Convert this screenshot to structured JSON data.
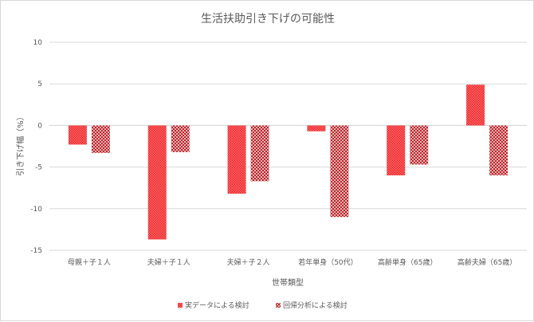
{
  "chart_data": {
    "type": "bar",
    "title": "生活扶助引き下げの可能性",
    "xlabel": "世帯類型",
    "ylabel": "引き下げ幅（%）",
    "ylim": [
      -15,
      10
    ],
    "yticks": [
      10,
      5,
      0,
      -5,
      -10,
      -15
    ],
    "ytick_labels": [
      "10",
      "5",
      "0",
      "-5",
      "-10",
      "-15"
    ],
    "grid": true,
    "legend_position": "bottom",
    "categories": [
      "母親＋子１人",
      "夫婦＋子１人",
      "夫婦＋子２人",
      "若年単身（50代）",
      "高齢単身（65歳）",
      "高齢夫婦（65歳）"
    ],
    "series": [
      {
        "name": "実データによる検討",
        "values": [
          -2.3,
          -13.7,
          -8.2,
          -0.7,
          -6.0,
          4.9
        ],
        "color": "#e8262b",
        "pattern": "dense-dots"
      },
      {
        "name": "回帰分析による検討",
        "values": [
          -3.3,
          -3.2,
          -6.7,
          -11.0,
          -4.7,
          -6.0
        ],
        "color": "#c0272d",
        "pattern": "checker"
      }
    ]
  }
}
